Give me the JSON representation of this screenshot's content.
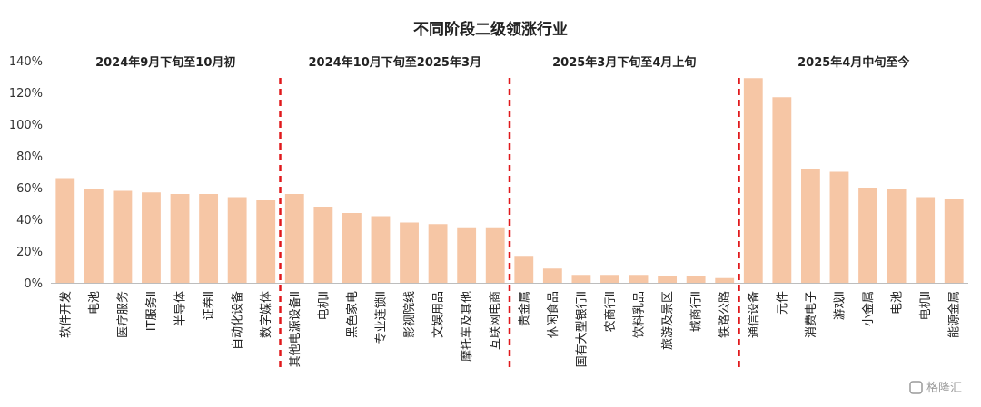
{
  "chart_data": {
    "type": "bar",
    "title": "不同阶段二级领涨行业",
    "y_unit": "%",
    "ylim": [
      0,
      140
    ],
    "yticks": [
      0,
      20,
      40,
      60,
      80,
      100,
      120,
      140
    ],
    "ytick_labels": [
      "0%",
      "20%",
      "40%",
      "60%",
      "80%",
      "100%",
      "120%",
      "140%"
    ],
    "grid": false,
    "bar_color": "#F6C6A5",
    "divider_color": "#E0191C",
    "phases": [
      {
        "label": "2024年9月下旬至10月初",
        "categories": [
          "软件开发",
          "电池",
          "医疗服务",
          "IT服务Ⅱ",
          "半导体",
          "证券Ⅱ",
          "自动化设备",
          "数字媒体"
        ],
        "values": [
          66,
          59,
          58,
          57,
          56,
          56,
          54,
          52
        ]
      },
      {
        "label": "2024年10月下旬至2025年3月",
        "categories": [
          "其他电源设备Ⅱ",
          "电机Ⅱ",
          "黑色家电",
          "专业连锁Ⅱ",
          "影视院线",
          "文娱用品",
          "摩托车及其他",
          "互联网电商"
        ],
        "values": [
          56,
          48,
          44,
          42,
          38,
          37,
          35,
          35
        ]
      },
      {
        "label": "2025年3月下旬至4月上旬",
        "categories": [
          "贵金属",
          "休闲食品",
          "国有大型银行Ⅱ",
          "农商行Ⅱ",
          "饮料乳品",
          "旅游及景区",
          "城商行Ⅱ",
          "铁路公路"
        ],
        "values": [
          17,
          9,
          5,
          5,
          5,
          4.5,
          4,
          3
        ]
      },
      {
        "label": "2025年4月中旬至今",
        "categories": [
          "通信设备",
          "元件",
          "消费电子",
          "游戏Ⅱ",
          "小金属",
          "电池",
          "电机Ⅱ",
          "能源金属"
        ],
        "values": [
          129,
          117,
          72,
          70,
          60,
          59,
          54,
          53
        ]
      }
    ]
  },
  "watermark": "格隆汇"
}
